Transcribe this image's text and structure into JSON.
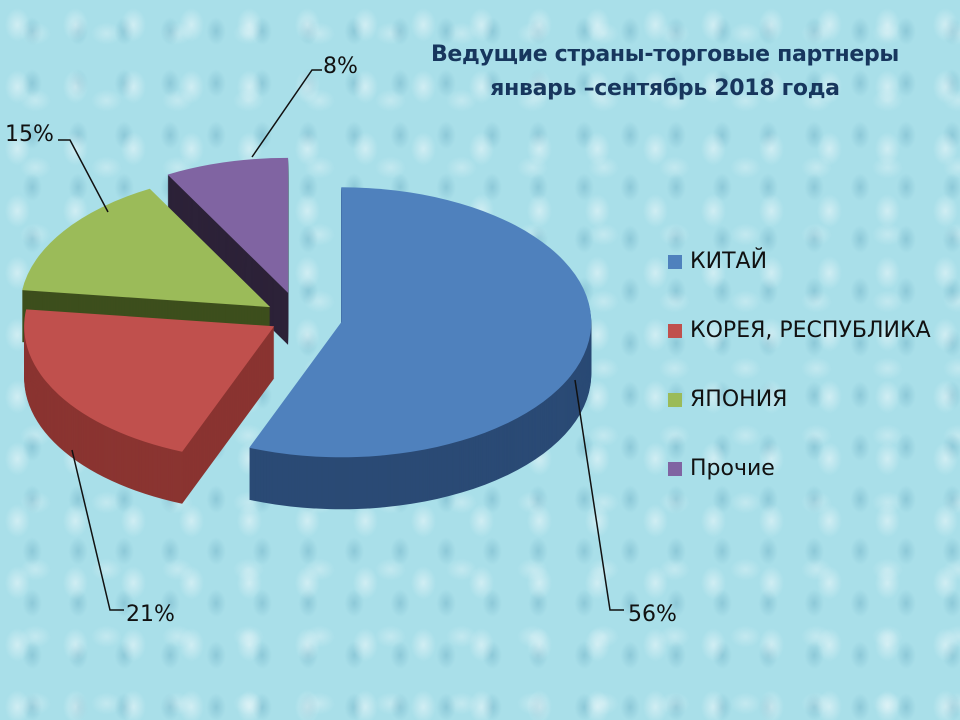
{
  "chart_data": {
    "type": "pie",
    "style": "3d-exploded",
    "title": "Ведущие страны-торговые партнеры январь –сентябрь 2018 года",
    "title_lines": [
      "Ведущие страны-торговые партнеры",
      "январь –сентябрь 2018 года"
    ],
    "legend_position": "right",
    "slices": [
      {
        "label": "КИТАЙ",
        "value": 56,
        "data_label": "56%",
        "color": "#4f81bd",
        "side_color": "#2a4a75"
      },
      {
        "label": "КОРЕЯ, РЕСПУБЛИКА",
        "value": 21,
        "data_label": "21%",
        "color": "#c0504d",
        "side_color": "#8a3431"
      },
      {
        "label": "ЯПОНИЯ",
        "value": 15,
        "data_label": "15%",
        "color": "#9bbb59",
        "side_color": "#3d4e1c"
      },
      {
        "label": "Прочие",
        "value": 8,
        "data_label": "8%",
        "color": "#8064a2",
        "side_color": "#2c2238"
      }
    ]
  }
}
